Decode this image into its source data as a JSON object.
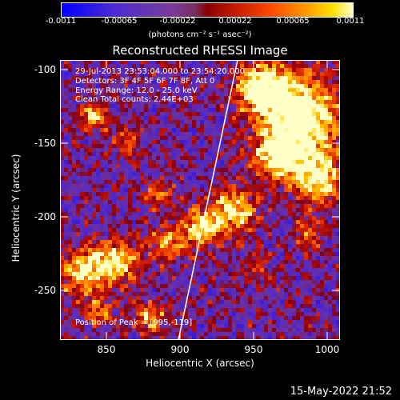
{
  "colorbar": {
    "ticks": [
      "-0.0011",
      "-0.00065",
      "-0.00022",
      "0.00022",
      "0.00065",
      "0.0011"
    ],
    "unit_label": "(photons cm⁻² s⁻¹ asec⁻²)"
  },
  "title": "Reconstructed RHESSI Image",
  "info": {
    "line1": "29-Jul-2013 23:53:04.000 to 23:54:20.000",
    "line2": "Detectors: 3F 4F 5F 6F 7F 8F, Att 0",
    "line3": "Energy Range: 12.0 - 25.0 keV",
    "line4": "Clean    Total counts: 2.44E+03"
  },
  "peak_label": "Position of Peak = [995,-119]",
  "axes": {
    "xlabel": "Heliocentric X (arcsec)",
    "ylabel": "Heliocentric Y (arcsec)",
    "xticks": [
      "850",
      "900",
      "950",
      "1000"
    ],
    "yticks": [
      "-100",
      "-150",
      "-200",
      "-250"
    ],
    "xrange": [
      818,
      1008
    ],
    "yrange": [
      -286,
      -96
    ]
  },
  "timestamp": "15-May-2022 21:52",
  "colors": {
    "low": "#0000ff",
    "mid": "#6b35a8",
    "high": "#ffffc0"
  }
}
